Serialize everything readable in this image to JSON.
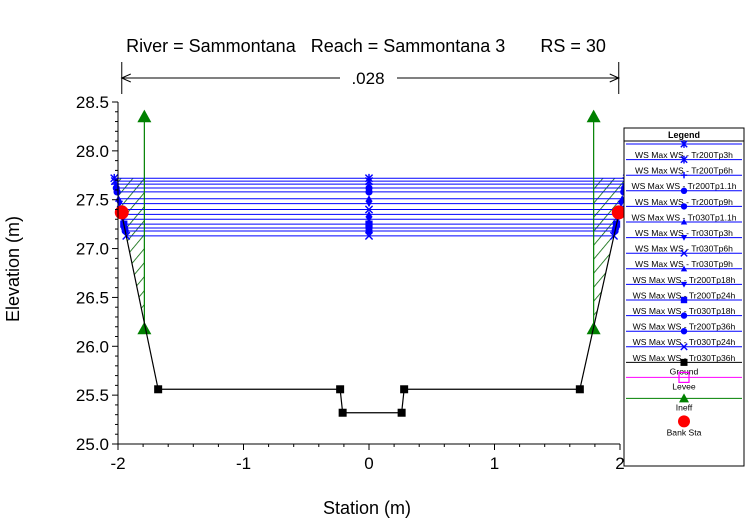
{
  "chart_data": {
    "type": "line",
    "title": "River = Sammontana   Reach = Sammontana 3       RS = 30",
    "xlabel": "Station (m)",
    "ylabel": "Elevation (m)",
    "xlim": [
      -2,
      2
    ],
    "ylim": [
      25.0,
      28.5
    ],
    "xticks": [
      "-2",
      "-1",
      "0",
      "1",
      "2"
    ],
    "yticks": [
      "25.0",
      "25.5",
      "26.0",
      "26.5",
      "27.0",
      "27.5",
      "28.0",
      "28.5"
    ],
    "manning_n": ".028",
    "manning_range": [
      -1.97,
      1.99
    ],
    "legend_title": "Legend",
    "legend_position": "right",
    "ground": {
      "name": "Ground",
      "color": "#000000",
      "x": [
        -1.97,
        -1.68,
        -0.23,
        -0.21,
        0.26,
        0.28,
        1.68,
        1.99
      ],
      "y": [
        27.35,
        25.56,
        25.56,
        25.32,
        25.32,
        25.56,
        25.56,
        27.35
      ]
    },
    "levee": {
      "name": "Levee",
      "color": "#ff00ff"
    },
    "ineff": {
      "name": "Ineff",
      "color": "#008000",
      "left": {
        "x": -1.79,
        "ytop": 28.35,
        "ybottom": 26.18
      },
      "right": {
        "x": 1.79,
        "ytop": 28.35,
        "ybottom": 26.18
      }
    },
    "bank_sta": {
      "name": "Bank Sta",
      "color": "#ff0000",
      "points": [
        [
          -1.97,
          27.37
        ],
        [
          1.99,
          27.37
        ]
      ]
    },
    "ws_color": "#0000ff",
    "ws_series": [
      {
        "name": "WS Max WS - Tr200Tp3h",
        "elevation": 27.72,
        "marker": "star"
      },
      {
        "name": "WS Max WS - Tr200Tp6h",
        "elevation": 27.69,
        "marker": "star"
      },
      {
        "name": "WS Max WS - Tr200Tp1.1h",
        "elevation": 27.66,
        "marker": "plus"
      },
      {
        "name": "WS Max WS - Tr200Tp9h",
        "elevation": 27.62,
        "marker": "circle"
      },
      {
        "name": "WS Max WS - Tr030Tp1.1h",
        "elevation": 27.58,
        "marker": "circle"
      },
      {
        "name": "WS Max WS - Tr030Tp3h",
        "elevation": 27.51,
        "marker": "triangle-up"
      },
      {
        "name": "WS Max WS - Tr030Tp6h",
        "elevation": 27.46,
        "marker": "triangle-down"
      },
      {
        "name": "WS Max WS - Tr030Tp9h",
        "elevation": 27.4,
        "marker": "x"
      },
      {
        "name": "WS Max WS - Tr200Tp18h",
        "elevation": 27.35,
        "marker": "triangle-up"
      },
      {
        "name": "WS Max WS - Tr200Tp24h",
        "elevation": 27.3,
        "marker": "triangle-down"
      },
      {
        "name": "WS Max WS - Tr030Tp18h",
        "elevation": 27.25,
        "marker": "square"
      },
      {
        "name": "WS Max WS - Tr200Tp36h",
        "elevation": 27.21,
        "marker": "circle"
      },
      {
        "name": "WS Max WS - Tr030Tp24h",
        "elevation": 27.18,
        "marker": "circle"
      },
      {
        "name": "WS Max WS - Tr030Tp36h",
        "elevation": 27.13,
        "marker": "x"
      }
    ],
    "grid": false
  }
}
